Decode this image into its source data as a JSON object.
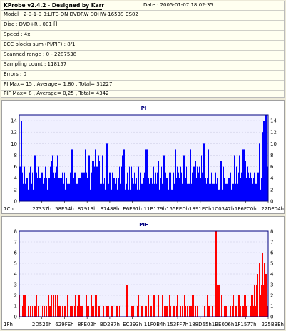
{
  "header": {
    "title": "KProbe v2.4.2 - Designed by Karr",
    "date": "Date : 2005-01-07 18:02:35"
  },
  "info_lines": [
    "Model : 2-0-1-0 3:LITE-ON DVDRW SOHW-1653S CS02",
    "Disc : DVD+R , 001 []",
    "Speed : 4x",
    "ECC blocks sum (PI/PIF) : 8/1",
    "Scanned range : 0 - 2287538",
    "Sampling count : 118157",
    "Errors : 0",
    "PI Max= 15 , Average= 1,80 , Total= 31227",
    "PIF Max= 8 , Average= 0,25 , Total= 4342"
  ],
  "colors": {
    "pi_bar": "#0000ff",
    "pif_bar": "#ff0000",
    "plot_bg": "#f0f0ff",
    "plot_border": "#000080",
    "title_color": "#000080"
  },
  "chart_data": [
    {
      "type": "bar",
      "title": "PI",
      "ylim": [
        0,
        15
      ],
      "yticks": [
        0,
        2,
        4,
        6,
        8,
        10,
        12,
        14
      ],
      "xticklabels": [
        "7Ch",
        "27337h",
        "58E54h",
        "87913h",
        "B7488h",
        "E6E91h",
        "11B179h",
        "155EEDh",
        "1891ECh",
        "1C0347h",
        "1F6FC0h",
        "22DF04h"
      ],
      "grid": true,
      "baseline": 4,
      "max": 15,
      "spikes": [
        {
          "pos": 0.008,
          "value": 14
        },
        {
          "pos": 0.06,
          "value": 8
        },
        {
          "pos": 0.13,
          "value": 7
        },
        {
          "pos": 0.21,
          "value": 9
        },
        {
          "pos": 0.28,
          "value": 8
        },
        {
          "pos": 0.35,
          "value": 10
        },
        {
          "pos": 0.42,
          "value": 9
        },
        {
          "pos": 0.51,
          "value": 9
        },
        {
          "pos": 0.58,
          "value": 8
        },
        {
          "pos": 0.66,
          "value": 8
        },
        {
          "pos": 0.74,
          "value": 10
        },
        {
          "pos": 0.81,
          "value": 7
        },
        {
          "pos": 0.9,
          "value": 9
        },
        {
          "pos": 0.965,
          "value": 10
        },
        {
          "pos": 0.975,
          "value": 12
        },
        {
          "pos": 0.982,
          "value": 14
        },
        {
          "pos": 0.99,
          "value": 15
        }
      ]
    },
    {
      "type": "bar",
      "title": "PIF",
      "ylim": [
        0,
        8
      ],
      "yticks": [
        0,
        1,
        2,
        3,
        4,
        5,
        6,
        7,
        8
      ],
      "xticklabels": [
        "1Fh",
        "2D526h",
        "629FEh",
        "8FE02h",
        "BD287h",
        "EC393h",
        "11F0B4h",
        "153FF7h",
        "188D65h",
        "1BE006h",
        "1F1577h",
        "225B3Eh"
      ],
      "grid": true,
      "baseline": 2,
      "max": 8,
      "spikes": [
        {
          "pos": 0.02,
          "value": 2
        },
        {
          "pos": 0.43,
          "value": 3
        },
        {
          "pos": 0.79,
          "value": 8
        },
        {
          "pos": 0.795,
          "value": 3
        },
        {
          "pos": 0.8,
          "value": 3
        },
        {
          "pos": 0.955,
          "value": 4
        },
        {
          "pos": 0.965,
          "value": 5
        },
        {
          "pos": 0.975,
          "value": 6
        },
        {
          "pos": 0.985,
          "value": 5
        },
        {
          "pos": 0.99,
          "value": 4
        }
      ]
    }
  ]
}
